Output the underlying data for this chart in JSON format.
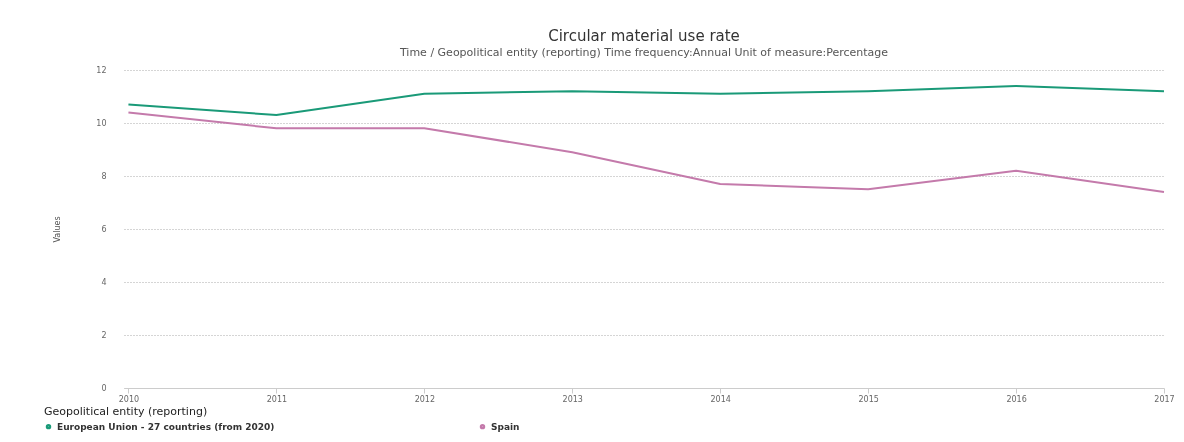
{
  "chart_data": {
    "type": "line",
    "title": "Circular material use rate",
    "subtitle": "Time / Geopolitical entity (reporting)  Time frequency:Annual  Unit of measure:Percentage",
    "ylabel": "Values",
    "legend_title": "Geopolitical entity (reporting)",
    "categories": [
      "2010",
      "2011",
      "2012",
      "2013",
      "2014",
      "2015",
      "2016",
      "2017"
    ],
    "series": [
      {
        "name": "European Union - 27 countries (from 2020)",
        "color": "#1a9a78",
        "values": [
          10.7,
          10.3,
          11.1,
          11.2,
          11.1,
          11.2,
          11.4,
          11.2
        ]
      },
      {
        "name": "Spain",
        "color": "#c47aab",
        "values": [
          10.4,
          9.8,
          9.8,
          8.9,
          7.7,
          7.5,
          8.2,
          7.4
        ]
      }
    ],
    "ylim": [
      0,
      12
    ],
    "yticks": [
      0,
      2,
      4,
      6,
      8,
      10,
      12
    ],
    "grid": "y",
    "legend": "bottom left",
    "marker": "none",
    "line_style": "solid"
  }
}
